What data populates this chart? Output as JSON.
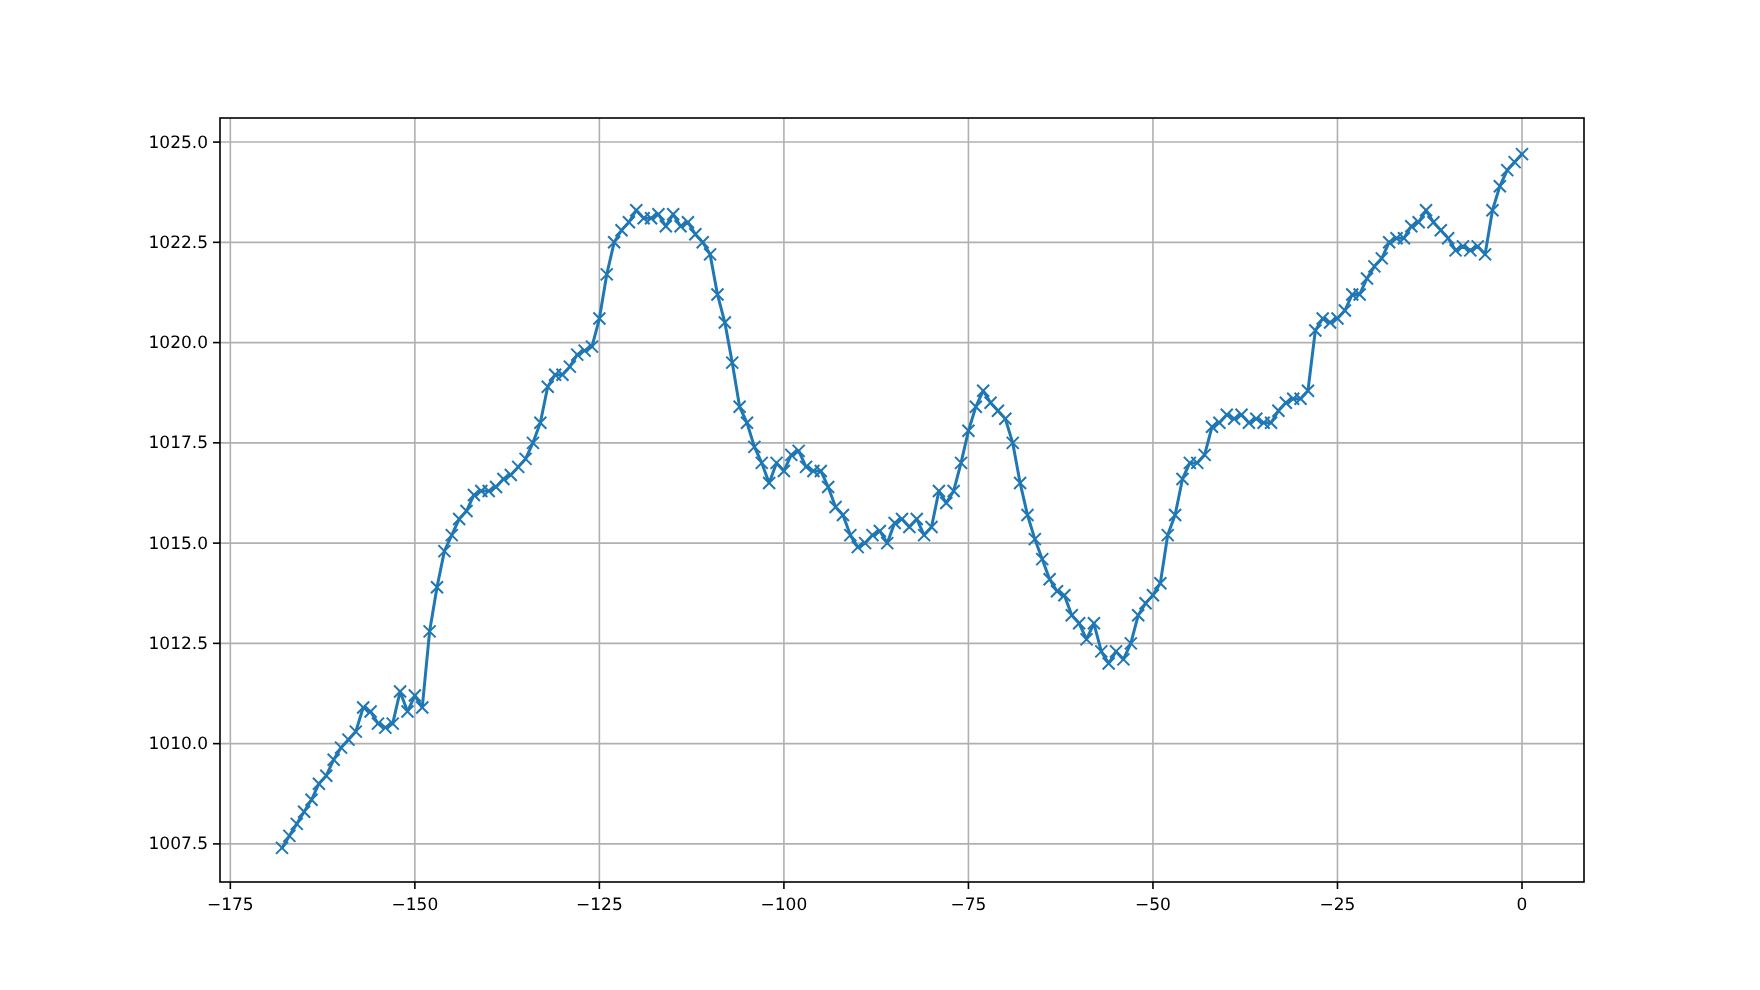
{
  "chart_data": {
    "type": "line",
    "marker": "cross",
    "grid": true,
    "xlim": [
      -176.4,
      8.4
    ],
    "ylim": [
      1006.55,
      1025.6
    ],
    "xticks": [
      {
        "value": -175,
        "label": "−175"
      },
      {
        "value": -150,
        "label": "−150"
      },
      {
        "value": -125,
        "label": "−125"
      },
      {
        "value": -100,
        "label": "−100"
      },
      {
        "value": -75,
        "label": "−75"
      },
      {
        "value": -50,
        "label": "−50"
      },
      {
        "value": -25,
        "label": "−25"
      },
      {
        "value": 0,
        "label": "0"
      }
    ],
    "yticks": [
      1007.5,
      {
        "value": 1010,
        "label": "1010.0"
      },
      1012.5,
      {
        "value": 1015,
        "label": "1015.0"
      },
      1017.5,
      {
        "value": 1020,
        "label": "1020.0"
      },
      1022.5,
      {
        "value": 1025,
        "label": "1025.0"
      }
    ],
    "series": [
      {
        "color": "#1f77b4",
        "x": [
          -168,
          -167,
          -166,
          -165,
          -164,
          -163,
          -162,
          -161,
          -160,
          -159,
          -158,
          -157,
          -156,
          -155,
          -154,
          -153,
          -152,
          -151,
          -150,
          -149,
          -148,
          -147,
          -146,
          -145,
          -144,
          -143,
          -142,
          -141,
          -140,
          -139,
          -138,
          -137,
          -136,
          -135,
          -134,
          -133,
          -132,
          -131,
          -130,
          -129,
          -128,
          -127,
          -126,
          -125,
          -124,
          -123,
          -122,
          -121,
          -120,
          -119,
          -118,
          -117,
          -116,
          -115,
          -114,
          -113,
          -112,
          -111,
          -110,
          -109,
          -108,
          -107,
          -106,
          -105,
          -104,
          -103,
          -102,
          -101,
          -100,
          -99,
          -98,
          -97,
          -96,
          -95,
          -94,
          -93,
          -92,
          -91,
          -90,
          -89,
          -88,
          -87,
          -86,
          -85,
          -84,
          -83,
          -82,
          -81,
          -80,
          -79,
          -78,
          -77,
          -76,
          -75,
          -74,
          -73,
          -72,
          -71,
          -70,
          -69,
          -68,
          -67,
          -66,
          -65,
          -64,
          -63,
          -62,
          -61,
          -60,
          -59,
          -58,
          -57,
          -56,
          -55,
          -54,
          -53,
          -52,
          -51,
          -50,
          -49,
          -48,
          -47,
          -46,
          -45,
          -44,
          -43,
          -42,
          -41,
          -40,
          -39,
          -38,
          -37,
          -36,
          -35,
          -34,
          -33,
          -32,
          -31,
          -30,
          -29,
          -28,
          -27,
          -26,
          -25,
          -24,
          -23,
          -22,
          -21,
          -20,
          -19,
          -18,
          -17,
          -16,
          -15,
          -14,
          -13,
          -12,
          -11,
          -10,
          -9,
          -8,
          -7,
          -6,
          -5,
          -4,
          -3,
          -2,
          -1,
          0
        ],
        "values": [
          1007.4,
          1007.7,
          1008.0,
          1008.3,
          1008.6,
          1009.0,
          1009.2,
          1009.6,
          1009.9,
          1010.1,
          1010.3,
          1010.9,
          1010.8,
          1010.5,
          1010.4,
          1010.5,
          1011.3,
          1010.8,
          1011.2,
          1010.9,
          1012.8,
          1013.9,
          1014.8,
          1015.2,
          1015.6,
          1015.8,
          1016.2,
          1016.3,
          1016.3,
          1016.4,
          1016.6,
          1016.7,
          1016.9,
          1017.1,
          1017.5,
          1018.0,
          1018.9,
          1019.2,
          1019.2,
          1019.4,
          1019.7,
          1019.8,
          1019.9,
          1020.6,
          1021.7,
          1022.5,
          1022.8,
          1023.0,
          1023.3,
          1023.1,
          1023.1,
          1023.2,
          1022.9,
          1023.2,
          1022.9,
          1023.0,
          1022.7,
          1022.5,
          1022.2,
          1021.2,
          1020.5,
          1019.5,
          1018.4,
          1018.0,
          1017.4,
          1017.0,
          1016.5,
          1017.0,
          1016.8,
          1017.2,
          1017.3,
          1016.9,
          1016.8,
          1016.8,
          1016.4,
          1015.9,
          1015.7,
          1015.2,
          1014.9,
          1015.0,
          1015.2,
          1015.3,
          1015.0,
          1015.5,
          1015.6,
          1015.4,
          1015.6,
          1015.2,
          1015.4,
          1016.3,
          1016.0,
          1016.3,
          1017.0,
          1017.8,
          1018.4,
          1018.8,
          1018.5,
          1018.3,
          1018.1,
          1017.5,
          1016.5,
          1015.7,
          1015.1,
          1014.6,
          1014.1,
          1013.8,
          1013.7,
          1013.2,
          1013.0,
          1012.6,
          1013.0,
          1012.3,
          1012.0,
          1012.3,
          1012.1,
          1012.5,
          1013.2,
          1013.5,
          1013.7,
          1014.0,
          1015.2,
          1015.7,
          1016.6,
          1017.0,
          1017.0,
          1017.2,
          1017.9,
          1018.0,
          1018.2,
          1018.1,
          1018.2,
          1018.0,
          1018.1,
          1018.0,
          1018.0,
          1018.3,
          1018.5,
          1018.6,
          1018.6,
          1018.8,
          1020.3,
          1020.6,
          1020.5,
          1020.6,
          1020.8,
          1021.2,
          1021.2,
          1021.6,
          1021.9,
          1022.1,
          1022.5,
          1022.6,
          1022.6,
          1022.9,
          1023.0,
          1023.3,
          1023.0,
          1022.8,
          1022.6,
          1022.3,
          1022.4,
          1022.3,
          1022.4,
          1022.2,
          1023.3,
          1023.9,
          1024.3,
          1024.5,
          1024.7
        ]
      }
    ]
  }
}
